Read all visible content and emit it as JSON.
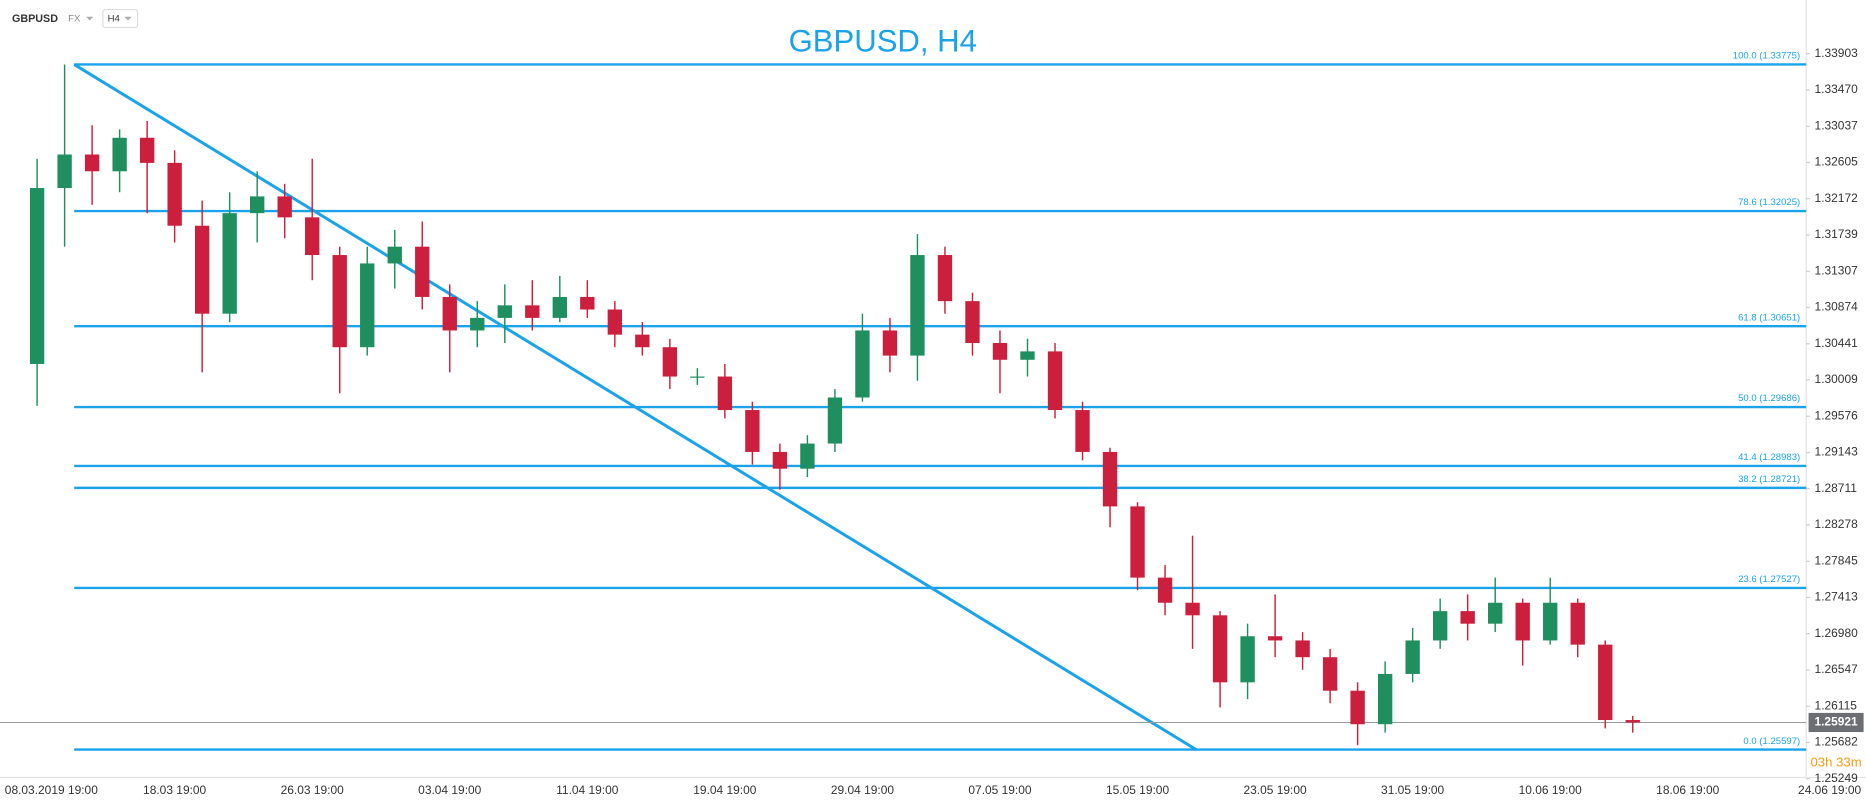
{
  "header": {
    "symbol": "GBPUSD",
    "market": "FX",
    "timeframe": "H4"
  },
  "chart_data": {
    "type": "candlestick",
    "title": "GBPUSD, H4",
    "categories": [
      "08.03.2019 19:00",
      null,
      null,
      null,
      null,
      "18.03 19:00",
      null,
      null,
      null,
      null,
      "26.03 19:00",
      null,
      null,
      null,
      null,
      "03.04 19:00",
      null,
      null,
      null,
      null,
      "11.04 19:00",
      null,
      null,
      null,
      null,
      "19.04 19:00",
      null,
      null,
      null,
      null,
      "29.04 19:00",
      null,
      null,
      null,
      null,
      "07.05 19:00",
      null,
      null,
      null,
      null,
      "15.05 19:00",
      null,
      null,
      null,
      null,
      "23.05 19:00",
      null,
      null,
      null,
      null,
      "31.05 19:00",
      null,
      null,
      null,
      null,
      "10.06 19:00",
      null,
      null,
      null,
      null,
      "18.06 19:00",
      null,
      null,
      null,
      null,
      "24.06 19:00"
    ],
    "open": [
      1.302,
      1.323,
      1.327,
      1.325,
      1.329,
      1.326,
      1.3185,
      1.308,
      1.32,
      1.322,
      1.3195,
      1.315,
      1.304,
      1.314,
      1.316,
      1.31,
      1.306,
      1.3075,
      1.309,
      1.3075,
      1.31,
      1.3085,
      1.3055,
      1.304,
      1.3005,
      1.3005,
      1.2965,
      1.2915,
      1.2895,
      1.2925,
      1.298,
      1.306,
      1.303,
      1.315,
      1.3095,
      1.3045,
      1.3025,
      1.3035,
      1.2965,
      1.2915,
      1.285,
      1.2765,
      1.2735,
      1.272,
      1.264,
      1.2695,
      1.269,
      1.267,
      1.263,
      1.259,
      1.265,
      1.269,
      1.2725,
      1.271,
      1.2735,
      1.269,
      1.2735,
      1.2685,
      1.2595,
      null,
      null,
      null,
      null,
      null,
      null,
      null
    ],
    "high": [
      1.3265,
      1.33775,
      1.3305,
      1.33,
      1.331,
      1.3275,
      1.3215,
      1.3225,
      1.325,
      1.3235,
      1.3265,
      1.316,
      1.316,
      1.318,
      1.319,
      1.3115,
      1.3095,
      1.3115,
      1.312,
      1.3125,
      1.312,
      1.3095,
      1.307,
      1.305,
      1.3015,
      1.302,
      1.2975,
      1.2925,
      1.2935,
      1.299,
      1.308,
      1.3075,
      1.3175,
      1.316,
      1.3105,
      1.306,
      1.305,
      1.3045,
      1.2975,
      1.292,
      1.2855,
      1.278,
      1.2815,
      1.2725,
      1.271,
      1.2745,
      1.27,
      1.268,
      1.264,
      1.2665,
      1.2705,
      1.274,
      1.2745,
      1.2765,
      1.274,
      1.2765,
      1.274,
      1.269,
      1.26,
      null,
      null,
      null,
      null,
      null,
      null,
      null
    ],
    "low": [
      1.297,
      1.316,
      1.321,
      1.3225,
      1.32,
      1.3165,
      1.301,
      1.307,
      1.3165,
      1.317,
      1.312,
      1.2985,
      1.303,
      1.311,
      1.3085,
      1.301,
      1.304,
      1.3045,
      1.306,
      1.307,
      1.3075,
      1.304,
      1.303,
      1.299,
      1.2995,
      1.2955,
      1.29,
      1.287,
      1.2885,
      1.2915,
      1.2975,
      1.301,
      1.3,
      1.308,
      1.303,
      1.2985,
      1.3005,
      1.2955,
      1.2905,
      1.2825,
      1.275,
      1.272,
      1.268,
      1.261,
      1.262,
      1.267,
      1.2655,
      1.2615,
      1.2565,
      1.258,
      1.264,
      1.268,
      1.269,
      1.27,
      1.266,
      1.2685,
      1.267,
      1.2585,
      1.258,
      null,
      null,
      null,
      null,
      null,
      null,
      null
    ],
    "close": [
      1.323,
      1.327,
      1.325,
      1.329,
      1.326,
      1.3185,
      1.308,
      1.32,
      1.322,
      1.3195,
      1.315,
      1.304,
      1.314,
      1.316,
      1.31,
      1.306,
      1.3075,
      1.309,
      1.3075,
      1.31,
      1.3085,
      1.3055,
      1.304,
      1.3005,
      1.3005,
      1.2965,
      1.2915,
      1.2895,
      1.2925,
      1.298,
      1.306,
      1.303,
      1.315,
      1.3095,
      1.3045,
      1.3025,
      1.3035,
      1.2965,
      1.2915,
      1.285,
      1.2765,
      1.2735,
      1.272,
      1.264,
      1.2695,
      1.269,
      1.267,
      1.263,
      1.259,
      1.265,
      1.269,
      1.2725,
      1.271,
      1.2735,
      1.269,
      1.2735,
      1.2685,
      1.2595,
      1.25921,
      null,
      null,
      null,
      null,
      null,
      null,
      null
    ],
    "up_color": "#1f8f5f",
    "down_color": "#cc1f3d",
    "ylim": [
      1.2525,
      1.3443
    ],
    "yticks": [
      1.33903,
      {
        "value": 1.3347,
        "label": "1.33470"
      },
      1.33037,
      1.32605,
      1.32172,
      1.31739,
      1.31307,
      1.30874,
      1.30441,
      1.30009,
      1.29576,
      1.29143,
      1.28711,
      1.28278,
      1.27845,
      1.27413,
      {
        "value": 1.2698,
        "label": "1.26980"
      },
      1.26547,
      1.26115,
      1.25682,
      1.25249
    ],
    "last_price": 1.25921,
    "countdown": "03h 33m",
    "fib_color": "#1aa3e8",
    "fib_levels": [
      {
        "value": 1.33775,
        "label": "100.0 (1.33775)"
      },
      {
        "value": 1.32025,
        "label": "78.6 (1.32025)"
      },
      {
        "value": 1.30651,
        "label": "61.8 (1.30651)"
      },
      {
        "value": 1.29686,
        "label": "50.0 (1.29686)"
      },
      {
        "value": 1.28983,
        "label": "41.4 (1.28983)"
      },
      {
        "value": 1.28721,
        "label": "38.2 (1.28721)"
      },
      {
        "value": 1.27527,
        "label": "23.6 (1.27527)"
      },
      {
        "value": 1.25597,
        "label": "0.0 (1.25597)"
      }
    ]
  }
}
